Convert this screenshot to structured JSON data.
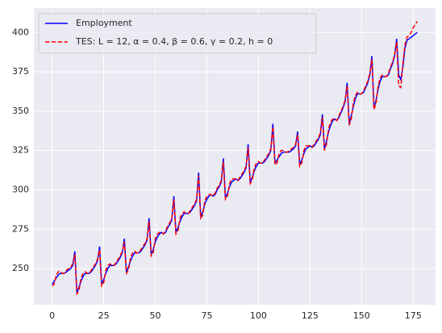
{
  "chart_data": {
    "type": "line",
    "x": [
      0,
      1,
      2,
      3,
      4,
      5,
      6,
      7,
      8,
      9,
      10,
      11,
      12,
      13,
      14,
      15,
      16,
      17,
      18,
      19,
      20,
      21,
      22,
      23,
      24,
      25,
      26,
      27,
      28,
      29,
      30,
      31,
      32,
      33,
      34,
      35,
      36,
      37,
      38,
      39,
      40,
      41,
      42,
      43,
      44,
      45,
      46,
      47,
      48,
      49,
      50,
      51,
      52,
      53,
      54,
      55,
      56,
      57,
      58,
      59,
      60,
      61,
      62,
      63,
      64,
      65,
      66,
      67,
      68,
      69,
      70,
      71,
      72,
      73,
      74,
      75,
      76,
      77,
      78,
      79,
      80,
      81,
      82,
      83,
      84,
      85,
      86,
      87,
      88,
      89,
      90,
      91,
      92,
      93,
      94,
      95,
      96,
      97,
      98,
      99,
      100,
      101,
      102,
      103,
      104,
      105,
      106,
      107,
      108,
      109,
      110,
      111,
      112,
      113,
      114,
      115,
      116,
      117,
      118,
      119,
      120,
      121,
      122,
      123,
      124,
      125,
      126,
      127,
      128,
      129,
      130,
      131,
      132,
      133,
      134,
      135,
      136,
      137,
      138,
      139,
      140,
      141,
      142,
      143,
      144,
      145,
      146,
      147,
      148,
      149,
      150,
      151,
      152,
      153,
      154,
      155,
      156,
      157,
      158,
      159,
      160,
      161,
      162,
      163,
      164,
      165,
      166,
      167,
      168,
      169,
      170,
      171,
      172,
      173,
      174,
      175,
      176,
      177
    ],
    "series": [
      {
        "name": "Employment",
        "color": "#0000ff",
        "dash": false,
        "values": [
          240,
          242,
          244,
          246,
          247,
          247,
          247,
          248,
          249,
          250,
          252,
          261,
          235,
          238,
          242,
          245,
          247,
          247,
          247,
          248,
          250,
          252,
          255,
          264,
          240,
          243,
          247,
          250,
          252,
          252,
          252,
          253,
          255,
          257,
          260,
          269,
          248,
          251,
          255,
          258,
          260,
          260,
          260,
          261,
          263,
          265,
          268,
          282,
          259,
          262,
          267,
          270,
          272,
          273,
          272,
          273,
          276,
          278,
          281,
          296,
          273,
          276,
          280,
          283,
          285,
          285,
          285,
          286,
          288,
          290,
          293,
          311,
          283,
          286,
          291,
          294,
          296,
          297,
          296,
          297,
          300,
          302,
          305,
          320,
          295,
          298,
          302,
          305,
          306,
          307,
          306,
          307,
          309,
          311,
          314,
          329,
          305,
          308,
          312,
          315,
          317,
          317,
          317,
          318,
          320,
          322,
          325,
          342,
          317,
          319,
          321,
          323,
          324,
          324,
          324,
          324,
          325,
          326,
          328,
          337,
          316,
          319,
          323,
          326,
          327,
          328,
          327,
          328,
          330,
          332,
          335,
          348,
          326,
          331,
          337,
          341,
          344,
          345,
          344,
          346,
          349,
          352,
          356,
          368,
          342,
          347,
          353,
          358,
          361,
          361,
          361,
          362,
          365,
          368,
          373,
          385,
          352,
          357,
          364,
          369,
          372,
          372,
          372,
          373,
          377,
          380,
          385,
          396,
          373,
          370,
          378,
          390,
          395,
          396,
          397,
          398,
          399,
          400
        ]
      },
      {
        "name": "TES: L = 12, α = 0.4, β = 0.6, γ = 0.2, h = 0",
        "color": "#ff0000",
        "dash": true,
        "values": [
          239,
          240,
          246,
          248,
          248,
          247,
          247,
          249,
          250,
          251,
          253,
          259,
          234,
          236,
          244,
          247,
          248,
          247,
          247,
          249,
          251,
          253,
          256,
          262,
          239,
          241,
          249,
          252,
          253,
          252,
          252,
          254,
          256,
          258,
          261,
          267,
          247,
          249,
          257,
          260,
          261,
          260,
          260,
          262,
          264,
          266,
          269,
          280,
          258,
          260,
          269,
          272,
          273,
          273,
          272,
          274,
          277,
          279,
          282,
          294,
          272,
          274,
          282,
          285,
          286,
          285,
          285,
          287,
          289,
          291,
          294,
          309,
          282,
          284,
          293,
          296,
          297,
          297,
          296,
          298,
          301,
          303,
          306,
          318,
          294,
          296,
          304,
          307,
          307,
          307,
          306,
          308,
          310,
          312,
          315,
          327,
          304,
          306,
          314,
          317,
          318,
          317,
          317,
          319,
          321,
          323,
          326,
          340,
          316,
          317,
          323,
          325,
          325,
          324,
          324,
          325,
          326,
          327,
          329,
          335,
          315,
          317,
          325,
          328,
          328,
          328,
          327,
          329,
          331,
          333,
          336,
          346,
          325,
          329,
          339,
          343,
          345,
          345,
          344,
          347,
          350,
          353,
          357,
          366,
          341,
          345,
          355,
          360,
          362,
          361,
          361,
          363,
          366,
          369,
          374,
          383,
          351,
          355,
          366,
          371,
          373,
          372,
          372,
          374,
          378,
          381,
          386,
          394,
          366,
          365,
          380,
          392,
          397,
          398,
          400,
          403,
          405,
          407
        ]
      }
    ],
    "xlim": [
      -8.85,
      185.85
    ],
    "xticks": [
      0,
      25,
      50,
      75,
      100,
      125,
      150,
      175
    ],
    "ylim": [
      227,
      415.5
    ],
    "yticks": [
      250,
      275,
      300,
      325,
      350,
      375,
      400
    ],
    "grid": true,
    "legend": "upper left"
  }
}
